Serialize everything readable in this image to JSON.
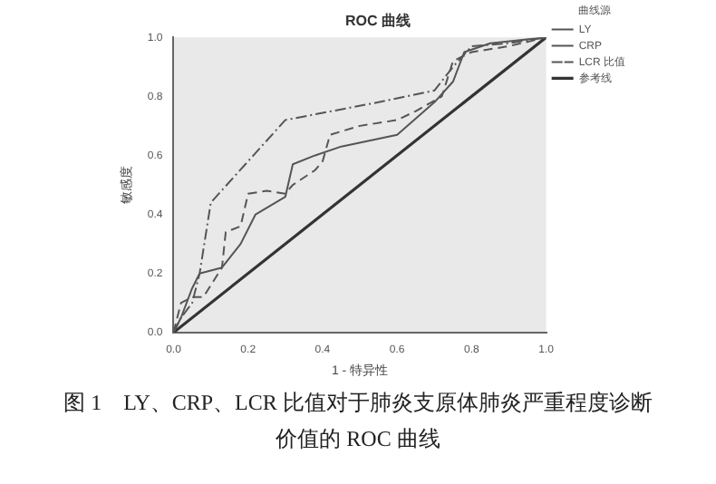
{
  "chart_data": {
    "type": "line",
    "title": "ROC 曲线",
    "xlabel": "1 - 特异性",
    "ylabel": "敏感度",
    "legend_title": "曲线源",
    "xlim": [
      0,
      1
    ],
    "xticks": [
      {
        "value": 0,
        "label": "0.0"
      },
      0.2,
      0.4,
      0.6,
      0.8,
      {
        "value": 1,
        "label": "1.0"
      }
    ],
    "ylim": [
      0,
      1
    ],
    "yticks": [
      {
        "value": 0,
        "label": "0.0"
      },
      0.2,
      0.4,
      0.6,
      0.8,
      {
        "value": 1,
        "label": "1.0"
      }
    ],
    "grid": false,
    "legend": "right",
    "marker": "none",
    "series": [
      {
        "name": "LY",
        "color": "#555555",
        "line_style": "solid",
        "x": [
          0,
          0.02,
          0.05,
          0.07,
          0.13,
          0.18,
          0.22,
          0.3,
          0.32,
          0.38,
          0.45,
          0.6,
          0.7,
          0.75,
          0.78,
          0.85,
          1
        ],
        "values": [
          0,
          0.05,
          0.15,
          0.2,
          0.22,
          0.3,
          0.4,
          0.46,
          0.57,
          0.6,
          0.63,
          0.67,
          0.78,
          0.85,
          0.95,
          0.98,
          1
        ]
      },
      {
        "name": "CRP",
        "color": "#555555",
        "line_style": "dashed",
        "x": [
          0,
          0.02,
          0.05,
          0.08,
          0.13,
          0.14,
          0.18,
          0.2,
          0.25,
          0.3,
          0.32,
          0.38,
          0.4,
          0.42,
          0.5,
          0.6,
          0.65,
          0.72,
          0.75,
          0.8,
          0.9,
          1
        ],
        "values": [
          0,
          0.1,
          0.12,
          0.12,
          0.22,
          0.34,
          0.36,
          0.47,
          0.48,
          0.47,
          0.5,
          0.55,
          0.58,
          0.67,
          0.7,
          0.72,
          0.75,
          0.8,
          0.92,
          0.95,
          0.97,
          1
        ]
      },
      {
        "name": "LCR 比值",
        "color": "#555555",
        "line_style": "dotted",
        "x": [
          0,
          0.02,
          0.05,
          0.07,
          0.1,
          0.3,
          0.55,
          0.7,
          0.75,
          0.8,
          0.9,
          1
        ],
        "values": [
          0,
          0.05,
          0.1,
          0.2,
          0.44,
          0.72,
          0.78,
          0.82,
          0.9,
          0.97,
          0.98,
          1
        ]
      },
      {
        "name": "参考线",
        "color": "#333333",
        "line_style": "solid",
        "x": [
          0,
          1
        ],
        "values": [
          0,
          1
        ]
      }
    ],
    "annotations": [
      "图 1　LY、CRP、LCR 比值对于肺炎支原体肺炎严重程度诊断价值的 ROC 曲线"
    ]
  }
}
